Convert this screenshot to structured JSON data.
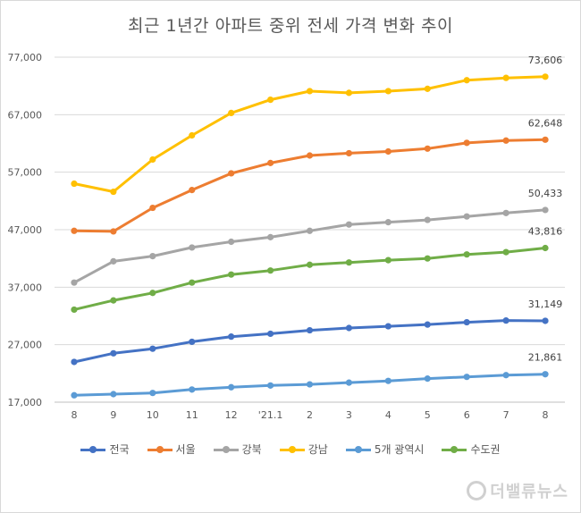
{
  "chart_data": {
    "type": "line",
    "title": "최근 1년간 아파트 중위 전세 가격 변화 추이",
    "categories": [
      "8",
      "9",
      "10",
      "11",
      "12",
      "'21.1",
      "2",
      "3",
      "4",
      "5",
      "6",
      "7",
      "8"
    ],
    "y_ticks": [
      "17,000",
      "27,000",
      "37,000",
      "47,000",
      "57,000",
      "67,000",
      "77,000"
    ],
    "ylim": [
      17000,
      77000
    ],
    "grid": true,
    "legend_position": "bottom",
    "series": [
      {
        "name": "전국",
        "color": "#4472c4",
        "end_label": "31,149",
        "values": [
          24000,
          25500,
          26300,
          27500,
          28400,
          28900,
          29500,
          29900,
          30200,
          30500,
          30900,
          31200,
          31149
        ]
      },
      {
        "name": "서울",
        "color": "#ed7d31",
        "end_label": "62,648",
        "values": [
          46800,
          46700,
          50800,
          53900,
          56800,
          58600,
          59900,
          60300,
          60600,
          61100,
          62100,
          62500,
          62648
        ]
      },
      {
        "name": "강북",
        "color": "#a5a5a5",
        "end_label": "50,433",
        "values": [
          37800,
          41500,
          42400,
          43900,
          44900,
          45700,
          46800,
          47900,
          48300,
          48700,
          49300,
          49900,
          50433
        ]
      },
      {
        "name": "강남",
        "color": "#ffc000",
        "end_label": "73,606",
        "values": [
          55000,
          53600,
          59200,
          63400,
          67300,
          69600,
          71100,
          70800,
          71100,
          71500,
          73000,
          73400,
          73606
        ]
      },
      {
        "name": "5개 광역시",
        "color": "#5b9bd5",
        "end_label": "21,861",
        "values": [
          18200,
          18400,
          18600,
          19200,
          19600,
          19900,
          20100,
          20400,
          20700,
          21100,
          21400,
          21700,
          21861
        ]
      },
      {
        "name": "수도권",
        "color": "#70ad47",
        "end_label": "43,816",
        "values": [
          33100,
          34700,
          36000,
          37800,
          39200,
          39900,
          40900,
          41300,
          41700,
          42000,
          42700,
          43100,
          43816
        ]
      }
    ]
  },
  "watermark": "더밸류뉴스"
}
